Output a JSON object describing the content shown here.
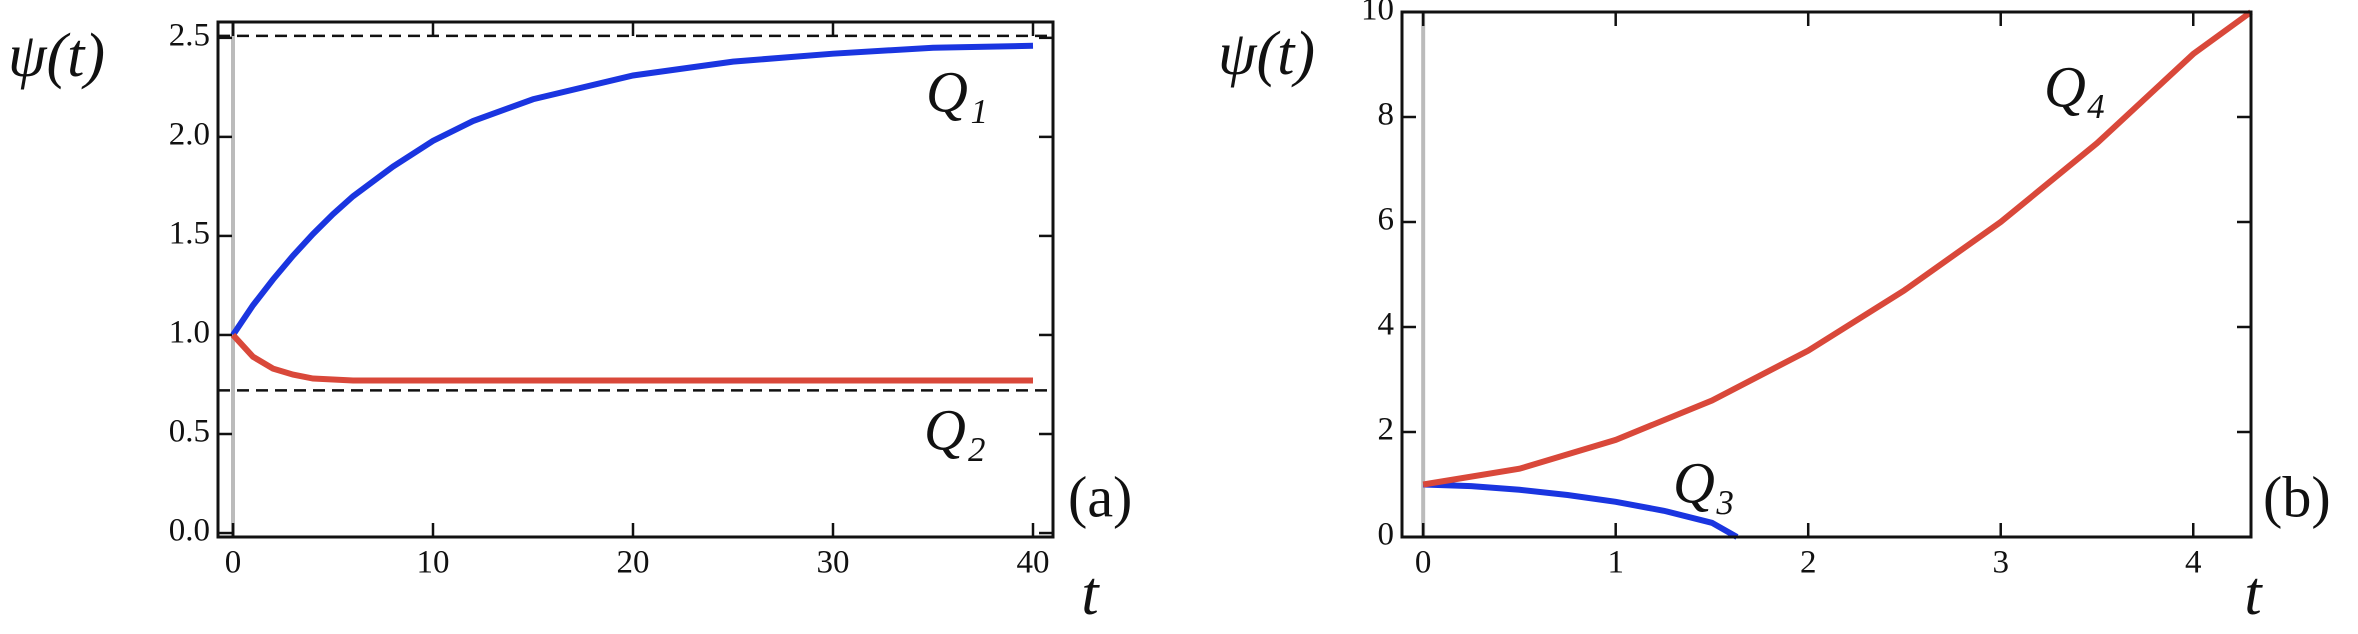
{
  "chart_data": [
    {
      "type": "line",
      "panel_label": "(a)",
      "x_label": "t",
      "y_label": "ψ(t)",
      "x": [
        0,
        1,
        2,
        3,
        4,
        5,
        6,
        8,
        10,
        12,
        15,
        20,
        25,
        30,
        35,
        40
      ],
      "series": [
        {
          "name": "Q₁",
          "color": "#1a35e0",
          "values": [
            1.0,
            1.15,
            1.28,
            1.4,
            1.51,
            1.61,
            1.7,
            1.85,
            1.98,
            2.08,
            2.19,
            2.31,
            2.38,
            2.42,
            2.45,
            2.46
          ]
        },
        {
          "name": "Q₂",
          "color": "#d9483a",
          "values": [
            1.0,
            0.89,
            0.83,
            0.8,
            0.78,
            0.775,
            0.77,
            0.77,
            0.77,
            0.77,
            0.77,
            0.77,
            0.77,
            0.77,
            0.77,
            0.77
          ]
        }
      ],
      "hlines": [
        2.51,
        0.72
      ],
      "xlim": [
        -0.75,
        41
      ],
      "ylim": [
        -0.02,
        2.58
      ],
      "xticks": [
        0,
        10,
        20,
        30,
        40
      ],
      "yticks": [
        {
          "value": 0,
          "label": "0.0"
        },
        0.5,
        {
          "value": 1,
          "label": "1.0"
        },
        1.5,
        {
          "value": 2,
          "label": "2.0"
        },
        2.5
      ]
    },
    {
      "type": "line",
      "panel_label": "(b)",
      "x_label": "t",
      "y_label": "ψ(t)",
      "series": [
        {
          "name": "Q₃",
          "color": "#1a35e0",
          "x": [
            0,
            0.25,
            0.5,
            0.75,
            1,
            1.25,
            1.5,
            1.63
          ],
          "values": [
            1,
            0.97,
            0.9,
            0.8,
            0.67,
            0.5,
            0.27,
            0
          ]
        },
        {
          "name": "Q₄",
          "color": "#d9483a",
          "x": [
            0,
            0.5,
            1,
            1.5,
            2,
            2.5,
            3,
            3.5,
            4,
            4.3
          ],
          "values": [
            1,
            1.3,
            1.85,
            2.6,
            3.55,
            4.7,
            6.0,
            7.5,
            9.2,
            10
          ]
        }
      ],
      "xlim": [
        -0.11,
        4.3
      ],
      "ylim": [
        0,
        10
      ],
      "xticks": [
        0,
        1,
        2,
        3,
        4
      ],
      "yticks": [
        0,
        2,
        4,
        6,
        8,
        10
      ]
    }
  ]
}
